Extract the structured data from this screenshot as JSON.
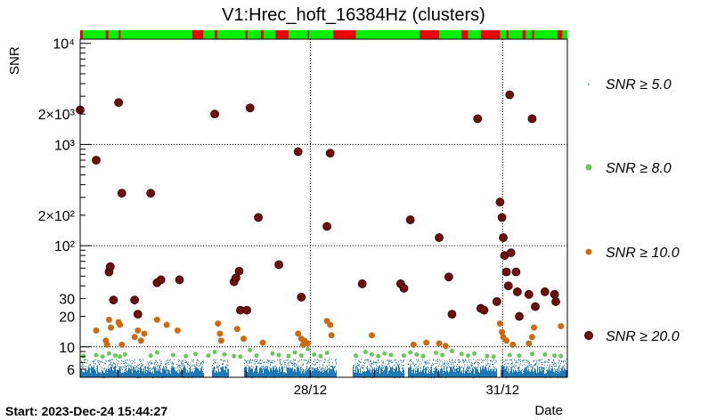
{
  "chart_data": {
    "type": "scatter",
    "title": "V1:Hrec_hoft_16384Hz (clusters)",
    "ylabel": "SNR",
    "xlabel": "Date",
    "start_label": "Start: 2023-Dec-24 15:44:27",
    "y_scale": "log",
    "ylim": [
      5.0,
      11000
    ],
    "xlim": [
      0,
      7.6
    ],
    "x_unit": "days since start",
    "x_ticks": [
      {
        "label": "28/12",
        "x": 3.59
      },
      {
        "label": "31/12",
        "x": 6.59
      }
    ],
    "y_ticks": [
      {
        "label": "6",
        "value": 6
      },
      {
        "label": "10",
        "value": 10
      },
      {
        "label": "20",
        "value": 20
      },
      {
        "label": "30",
        "value": 30
      },
      {
        "label": "10²",
        "value": 100
      },
      {
        "label": "2×10²",
        "value": 200
      },
      {
        "label": "10³",
        "value": 1000
      },
      {
        "label": "2×10³",
        "value": 2000
      },
      {
        "label": "10⁴",
        "value": 10000
      }
    ],
    "grid": true,
    "legend_position": "right",
    "series": [
      {
        "name": "SNR ≥ 5.0",
        "color": "#1f78b4",
        "marker": "dot"
      },
      {
        "name": "SNR ≥ 8.0",
        "color": "#66c856",
        "marker": "circle"
      },
      {
        "name": "SNR ≥ 10.0",
        "color": "#cc6a13",
        "marker": "circle"
      },
      {
        "name": "SNR ≥ 20.0",
        "color": "#6b0f0f",
        "marker": "circle"
      }
    ],
    "dense_band": {
      "series": "SNR ≥ 5.0",
      "y_range": [
        5.0,
        7.6
      ],
      "gaps": [
        [
          1.92,
          2.05
        ],
        [
          2.32,
          2.55
        ],
        [
          4.0,
          4.25
        ],
        [
          5.05,
          5.1
        ],
        [
          6.5,
          6.55
        ]
      ]
    },
    "points": {
      "SNR ≥ 8.0": [
        [
          0.05,
          8.1
        ],
        [
          0.25,
          8.3
        ],
        [
          0.35,
          8.0
        ],
        [
          0.45,
          8.6
        ],
        [
          0.55,
          8.2
        ],
        [
          0.62,
          8.0
        ],
        [
          0.7,
          8.4
        ],
        [
          1.1,
          8.2
        ],
        [
          1.2,
          8.8
        ],
        [
          1.45,
          8.3
        ],
        [
          1.65,
          8.1
        ],
        [
          1.8,
          8.5
        ],
        [
          2.0,
          8.2
        ],
        [
          2.1,
          8.9
        ],
        [
          2.25,
          8.4
        ],
        [
          2.4,
          8.1
        ],
        [
          2.5,
          8.0
        ],
        [
          2.65,
          9.3
        ],
        [
          2.75,
          8.2
        ],
        [
          3.0,
          8.6
        ],
        [
          3.1,
          8.3
        ],
        [
          3.25,
          8.1
        ],
        [
          3.35,
          8.8
        ],
        [
          3.45,
          8.2
        ],
        [
          3.55,
          9.5
        ],
        [
          3.65,
          8.4
        ],
        [
          3.75,
          8.1
        ],
        [
          3.85,
          8.7
        ],
        [
          4.3,
          8.2
        ],
        [
          4.45,
          8.9
        ],
        [
          4.55,
          8.4
        ],
        [
          4.65,
          8.1
        ],
        [
          4.75,
          8.6
        ],
        [
          4.85,
          8.3
        ],
        [
          5.05,
          8.2
        ],
        [
          5.15,
          8.8
        ],
        [
          5.25,
          8.4
        ],
        [
          5.35,
          8.1
        ],
        [
          5.55,
          8.7
        ],
        [
          5.65,
          8.3
        ],
        [
          5.8,
          9.1
        ],
        [
          5.95,
          8.5
        ],
        [
          6.05,
          8.2
        ],
        [
          6.15,
          8.6
        ],
        [
          6.35,
          8.1
        ],
        [
          6.45,
          8.0
        ],
        [
          6.7,
          8.3
        ],
        [
          6.85,
          8.2
        ],
        [
          7.05,
          8.5
        ],
        [
          7.25,
          8.4
        ],
        [
          7.4,
          8.2
        ],
        [
          7.5,
          8.1
        ]
      ],
      "SNR ≥ 10.0": [
        [
          0.25,
          14.5
        ],
        [
          0.4,
          11.5
        ],
        [
          0.42,
          10.5
        ],
        [
          0.45,
          18.5
        ],
        [
          0.48,
          15.5
        ],
        [
          0.6,
          17.5
        ],
        [
          0.62,
          16.5
        ],
        [
          0.65,
          10.5
        ],
        [
          0.85,
          12.5
        ],
        [
          0.9,
          14.5
        ],
        [
          0.95,
          11.5
        ],
        [
          1.0,
          13.5
        ],
        [
          1.2,
          18.5
        ],
        [
          1.35,
          16.5
        ],
        [
          1.52,
          14.5
        ],
        [
          2.15,
          17.0
        ],
        [
          2.18,
          13.5
        ],
        [
          2.2,
          11.5
        ],
        [
          2.45,
          15.0
        ],
        [
          2.55,
          12.0
        ],
        [
          2.85,
          11.0
        ],
        [
          3.4,
          13.5
        ],
        [
          3.45,
          12.0
        ],
        [
          3.48,
          10.5
        ],
        [
          3.5,
          11.5
        ],
        [
          3.55,
          10.8
        ],
        [
          3.85,
          18.0
        ],
        [
          3.9,
          16.5
        ],
        [
          3.92,
          13.0
        ],
        [
          4.55,
          13.0
        ],
        [
          5.2,
          10.5
        ],
        [
          5.4,
          11.0
        ],
        [
          5.6,
          10.8
        ],
        [
          5.7,
          10.2
        ],
        [
          6.55,
          17.0
        ],
        [
          6.58,
          14.0
        ],
        [
          6.6,
          12.5
        ],
        [
          6.65,
          11.5
        ],
        [
          6.75,
          10.5
        ],
        [
          7.0,
          10.8
        ],
        [
          7.05,
          12.5
        ],
        [
          7.08,
          15.5
        ],
        [
          7.5,
          16.0
        ]
      ],
      "SNR ≥ 20.0": [
        [
          0.0,
          2200
        ],
        [
          0.25,
          700
        ],
        [
          0.45,
          55
        ],
        [
          0.47,
          62
        ],
        [
          0.52,
          29
        ],
        [
          0.6,
          2600
        ],
        [
          0.65,
          330
        ],
        [
          0.85,
          29
        ],
        [
          0.9,
          21
        ],
        [
          1.1,
          330
        ],
        [
          1.2,
          43
        ],
        [
          1.26,
          46
        ],
        [
          1.55,
          46
        ],
        [
          2.1,
          2000
        ],
        [
          2.4,
          44
        ],
        [
          2.43,
          48
        ],
        [
          2.48,
          56
        ],
        [
          2.5,
          23
        ],
        [
          2.6,
          23
        ],
        [
          2.65,
          2300
        ],
        [
          2.78,
          190
        ],
        [
          3.1,
          65
        ],
        [
          3.4,
          850
        ],
        [
          3.45,
          31
        ],
        [
          3.85,
          155
        ],
        [
          3.9,
          820
        ],
        [
          4.4,
          42
        ],
        [
          5.0,
          42
        ],
        [
          5.05,
          38
        ],
        [
          5.15,
          180
        ],
        [
          5.6,
          120
        ],
        [
          5.75,
          49
        ],
        [
          5.8,
          21
        ],
        [
          6.2,
          1800
        ],
        [
          6.25,
          24
        ],
        [
          6.3,
          23
        ],
        [
          6.5,
          28
        ],
        [
          6.55,
          270
        ],
        [
          6.58,
          190
        ],
        [
          6.6,
          120
        ],
        [
          6.62,
          80
        ],
        [
          6.65,
          55
        ],
        [
          6.68,
          40
        ],
        [
          6.7,
          3100
        ],
        [
          6.72,
          85
        ],
        [
          6.8,
          55
        ],
        [
          6.82,
          35
        ],
        [
          6.85,
          20
        ],
        [
          7.0,
          33
        ],
        [
          7.05,
          1800
        ],
        [
          7.1,
          25
        ],
        [
          7.25,
          35
        ],
        [
          7.4,
          33
        ],
        [
          7.42,
          28
        ]
      ]
    },
    "segment_bar": {
      "ok_color": "#00ee00",
      "bad_color": "#ee0000",
      "bad_intervals": [
        [
          0.0,
          0.04
        ],
        [
          0.4,
          0.44
        ],
        [
          0.6,
          0.63
        ],
        [
          1.75,
          1.92
        ],
        [
          2.1,
          2.14
        ],
        [
          2.58,
          2.61
        ],
        [
          2.82,
          2.86
        ],
        [
          3.05,
          3.25
        ],
        [
          3.55,
          3.57
        ],
        [
          3.95,
          4.3
        ],
        [
          5.3,
          5.6
        ],
        [
          5.95,
          6.05
        ],
        [
          6.25,
          6.55
        ],
        [
          6.65,
          6.68
        ],
        [
          6.9,
          6.95
        ],
        [
          7.05,
          7.08
        ],
        [
          7.45,
          7.52
        ]
      ]
    }
  }
}
